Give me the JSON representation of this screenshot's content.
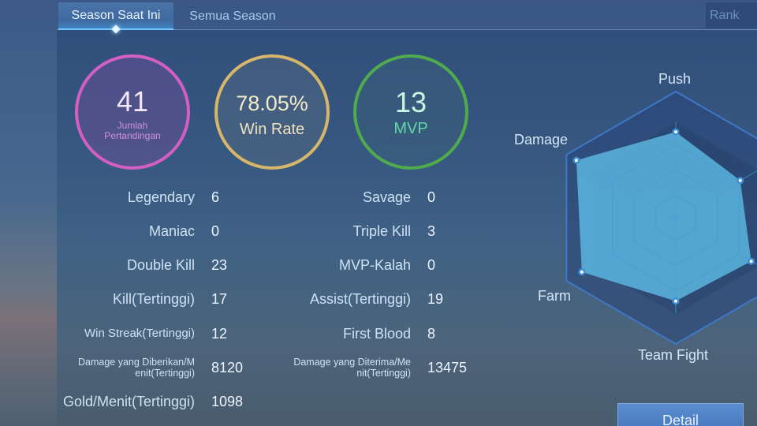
{
  "tabs": [
    {
      "label": "Season Saat Ini",
      "active": true
    },
    {
      "label": "Semua Season",
      "active": false
    }
  ],
  "rank_button": "Rank",
  "summary": {
    "matches": {
      "value": "41",
      "label": "Jumlah Pertandingan",
      "color": "#d35fc5"
    },
    "win_rate": {
      "value": "78.05%",
      "label": "Win Rate",
      "color": "#d6b66a"
    },
    "mvp": {
      "value": "13",
      "label": "MVP",
      "color": "#4fab4c"
    }
  },
  "stats_left": [
    {
      "label": "Legendary",
      "value": "6"
    },
    {
      "label": "Maniac",
      "value": "0"
    },
    {
      "label": "Double Kill",
      "value": "23"
    },
    {
      "label": "Kill(Tertinggi)",
      "value": "17"
    },
    {
      "label": "Win Streak(Tertinggi)",
      "value": "12"
    },
    {
      "label": "Damage yang Diberikan/Menit(Tertinggi)",
      "label_line1": "Damage yang Diberikan/M",
      "label_line2": "enit(Tertinggi)",
      "value": "8120"
    },
    {
      "label": "Gold/Menit(Tertinggi)",
      "value": "1098"
    }
  ],
  "stats_right": [
    {
      "label": "Savage",
      "value": "0"
    },
    {
      "label": "Triple Kill",
      "value": "3"
    },
    {
      "label": "MVP-Kalah",
      "value": "0"
    },
    {
      "label": "Assist(Tertinggi)",
      "value": "19"
    },
    {
      "label": "First Blood",
      "value": "8"
    },
    {
      "label": "Damage yang Diterima/Menit(Tertinggi)",
      "label_line1": "Damage yang Diterima/Me",
      "label_line2": "nit(Tertinggi)",
      "value": "13475"
    }
  ],
  "radar": {
    "axes": [
      "Push",
      "",
      "",
      "Team Fight",
      "Farm",
      "Damage"
    ],
    "values_pct": [
      68,
      59,
      69,
      66,
      86,
      91
    ],
    "fill_color": "#5bb6e0"
  },
  "chart_data": {
    "type": "radar",
    "categories": [
      "Push",
      "(offscreen)",
      "(offscreen)",
      "Team Fight",
      "Farm",
      "Damage"
    ],
    "values": [
      68,
      59,
      69,
      66,
      86,
      91
    ],
    "ylim": [
      0,
      100
    ]
  },
  "detail_button": "Detail"
}
